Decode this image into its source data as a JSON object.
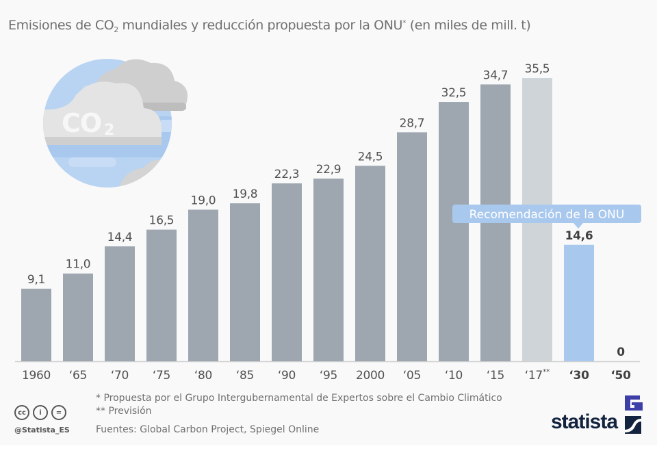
{
  "title": {
    "prefix": "Emisiones de CO",
    "sub": "2",
    "middle": " mundiales y reducción propuesta por la ONU",
    "sup": "*",
    "suffix": " (en miles de mill. t)"
  },
  "callout": "Recomendación de la ONU",
  "footnotes": {
    "note1": "*  Propuesta por el Grupo Intergubernamental de Expertos sobre el Cambio Climático",
    "note2": "** Previsión",
    "sources": "Fuentes: Global Carbon Project, Spiegel Online"
  },
  "license": {
    "icons": [
      "cc-icon",
      "by-icon",
      "nd-icon"
    ],
    "cc": "cc",
    "by": "i",
    "nd": "="
  },
  "handle": "@Statista_ES",
  "brand": "statista",
  "colors": {
    "historic": "#9ea7b0",
    "forecast": "#cfd4d9",
    "target": "#a9c8ee",
    "callout": "#a9c8ee",
    "logo": "#13233f",
    "logo_accent": "#3e3ea8"
  },
  "chart_data": {
    "type": "bar",
    "title": "Emisiones de CO2 mundiales y reducción propuesta por la ONU* (en miles de mill. t)",
    "xlabel": "",
    "ylabel": "",
    "ylim": [
      0,
      36
    ],
    "grid": false,
    "categories": [
      "1960",
      "‘65",
      "‘70",
      "‘75",
      "‘80",
      "‘85",
      "‘90",
      "‘95",
      "2000",
      "‘05",
      "‘10",
      "‘15",
      "‘17**",
      "‘30",
      "‘50"
    ],
    "values": [
      9.1,
      11.0,
      14.4,
      16.5,
      19.0,
      19.8,
      22.3,
      22.9,
      24.5,
      28.7,
      32.5,
      34.7,
      35.5,
      14.6,
      0
    ],
    "labels": [
      "9,1",
      "11,0",
      "14,4",
      "16,5",
      "19,0",
      "19,8",
      "22,3",
      "22,9",
      "24,5",
      "28,7",
      "32,5",
      "34,7",
      "35,5",
      "14,6",
      "0"
    ],
    "kind": [
      "historic",
      "historic",
      "historic",
      "historic",
      "historic",
      "historic",
      "historic",
      "historic",
      "historic",
      "historic",
      "historic",
      "historic",
      "forecast",
      "target",
      "target"
    ],
    "annotations": [
      {
        "text": "Recomendación de la ONU",
        "category": "‘30"
      }
    ]
  }
}
